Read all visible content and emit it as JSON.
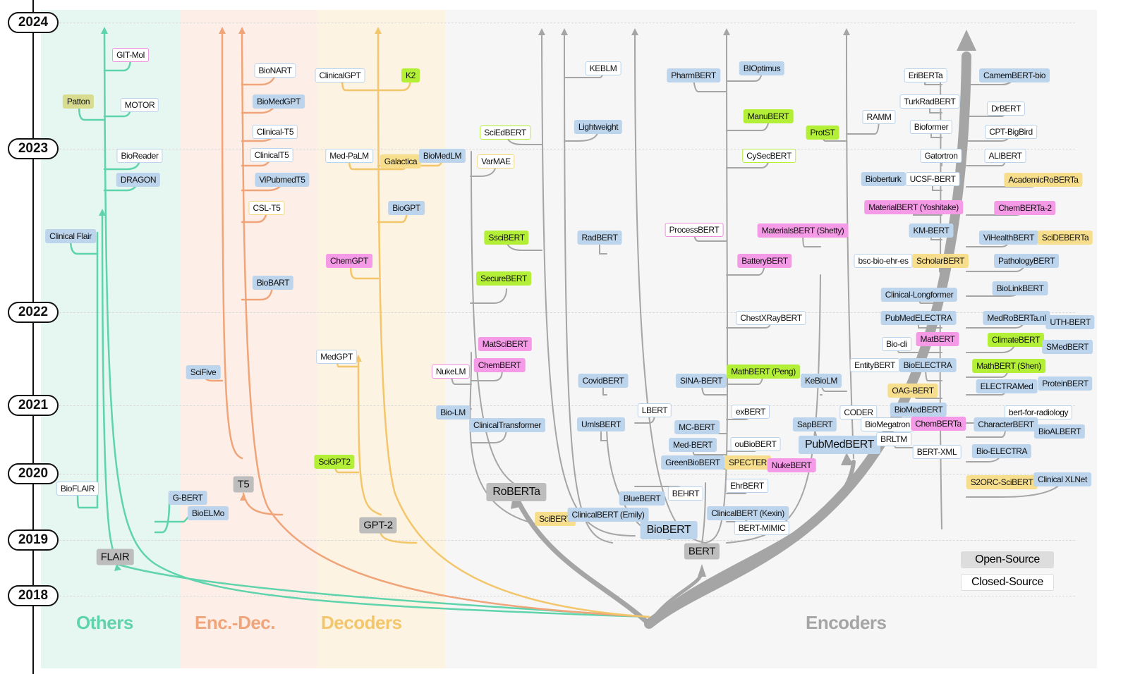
{
  "years": [
    "2024",
    "2023",
    "2022",
    "2021",
    "2020",
    "2019",
    "2018"
  ],
  "categories": {
    "others": "Others",
    "encdec": "Enc.-Dec.",
    "decoders": "Decoders",
    "encoders": "Encoders"
  },
  "legend": {
    "open": "Open-Source",
    "closed": "Closed-Source"
  },
  "colors": {
    "others": "#5ed3ac",
    "encdec": "#f0a479",
    "decoders": "#f3c66b",
    "encoders": "#9e9e9e"
  },
  "nodes": {
    "flair": "FLAIR",
    "gitmol": "GIT-Mol",
    "patton": "Patton",
    "motor": "MOTOR",
    "bioreader": "BioReader",
    "dragon": "DRAGON",
    "clinicalflair": "Clinical Flair",
    "bioflair": "BioFLAIR",
    "gbert": "G-BERT",
    "bioelmo": "BioELMo",
    "t5": "T5",
    "bionart": "BioNART",
    "biomedgpt": "BioMedGPT",
    "clinicalt5a": "Clinical-T5",
    "clinicalt5b": "ClinicalT5",
    "vipubmedt5": "ViPubmedT5",
    "cslt5": "CSL-T5",
    "biobart": "BioBART",
    "scifive": "SciFive",
    "gpt2": "GPT-2",
    "clinicalgpt": "ClinicalGPT",
    "k2": "K2",
    "medpalm": "Med-PaLM",
    "galactica": "Galactica",
    "biomedlm": "BioMedLM",
    "biogpt": "BioGPT",
    "chemgpt": "ChemGPT",
    "medgpt": "MedGPT",
    "scigpt2": "SciGPT2",
    "bert": "BERT",
    "roberta": "RoBERTa",
    "biobert": "BioBERT",
    "pubmedbert": "PubMedBERT",
    "sciedbert": "SciEdBERT",
    "varmae": "VarMAE",
    "sscibert": "SsciBERT",
    "securebert": "SecureBERT",
    "matscibert": "MatSciBERT",
    "nukelm": "NukeLM",
    "chembert": "ChemBERT",
    "biolm": "Bio-LM",
    "clinicaltransformer": "ClinicalTransformer",
    "kebl": "KEBLM",
    "lightweight": "Lightweight",
    "radbert": "RadBERT",
    "covidbert": "CovidBERT",
    "umlsbert": "UmlsBERT",
    "scibert": "SciBERT",
    "clinicalbertemily": "ClinicalBERT (Emily)",
    "bluebert": "BlueBERT",
    "behrt": "BEHRT",
    "lbert": "LBERT",
    "pharmbert": "PharmBERT",
    "bioptimus": "BIOptimus",
    "manubert": "ManuBERT",
    "cysecbert": "CySecBERT",
    "processbert": "ProcessBERT",
    "materialsbertshetty": "MaterialsBERT (Shetty)",
    "batterybert": "BatteryBERT",
    "chestxraybert": "ChestXRayBERT",
    "sinabert": "SINA-BERT",
    "mathbertpeng": "MathBERT (Peng)",
    "exbert": "exBERT",
    "mcbert": "MC-BERT",
    "medbert": "Med-BERT",
    "oubiobert": "ouBioBERT",
    "greenbiobert": "GreenBioBERT",
    "specter": "SPECTER",
    "nukebert": "NukeBERT",
    "ehrbert": "EhrBERT",
    "clinicalbertkexin": "ClinicalBERT (Kexin)",
    "bertmimic": "BERT-MIMIC",
    "protst": "ProtST",
    "ramm": "RAMM",
    "kebiolm": "KeBioLM",
    "sapbert": "SapBERT",
    "coder": "CODER",
    "eriberta": "EriBERTa",
    "turkradbert": "TurkRadBERT",
    "bioformer": "Bioformer",
    "gatortron": "Gatortron",
    "bioberturk": "Bioberturk",
    "ucsfbert": "UCSF-BERT",
    "materialbertyoshitake": "MaterialBERT (Yoshitake)",
    "kmbert": "KM-BERT",
    "bscbioehres": "bsc-bio-ehr-es",
    "scholarbert": "ScholarBERT",
    "clinicallongformer": "Clinical-Longformer",
    "pubmedelectra": "PubMedELECTRA",
    "biocli": "Bio-cli",
    "matbert": "MatBERT",
    "entitybert": "EntityBERT",
    "bioelectra": "BioELECTRA",
    "oagbert": "OAG-BERT",
    "biomedbert": "BioMedBERT",
    "biomegatron": "BioMegatron",
    "chemberta": "ChemBERTa",
    "brltm": "BRLTM",
    "bertxml": "BERT-XML",
    "camembertbio": "CamemBERT-bio",
    "drbert": "DrBERT",
    "cptbigbird": "CPT-BigBird",
    "alibert": "ALIBERT",
    "academicroberta": "AcademicRoBERTa",
    "chemberta2": "ChemBERTa-2",
    "vihealthbert": "ViHealthBERT",
    "scideberta": "SciDEBERTa",
    "pathologybert": "PathologyBERT",
    "biolinkbert": "BioLinkBERT",
    "medrobertanl": "MedRoBERTa.nl",
    "uthbert": "UTH-BERT",
    "climatebert": "ClimateBERT",
    "smedbert": "SMedBERT",
    "mathbertshen": "MathBERT (Shen)",
    "electramed": "ELECTRAMed",
    "proteinbert": "ProteinBERT",
    "bertforradiology": "bert-for-radiology",
    "characterbert": "CharacterBERT",
    "bioalbert": "BioALBERT",
    "bioelectra2": "Bio-ELECTRA",
    "s2orcscibert": "S2ORC-SciBERT",
    "clinicalxlnet": "Clinical XLNet"
  }
}
